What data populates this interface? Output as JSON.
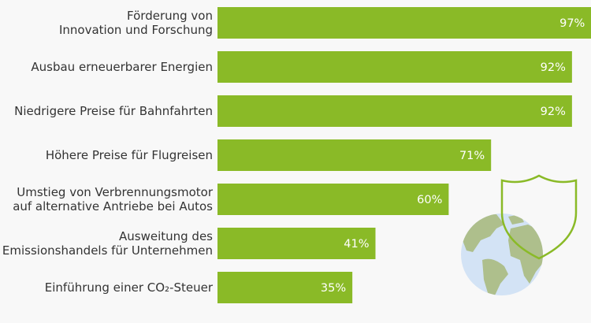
{
  "chart_data": {
    "type": "bar",
    "orientation": "horizontal",
    "categories": [
      [
        "Förderung von",
        "Innovation und Forschung"
      ],
      [
        "Ausbau erneuerbarer Energien"
      ],
      [
        "Niedrigere Preise für Bahnfahrten"
      ],
      [
        "Höhere Preise für Flugreisen"
      ],
      [
        "Umstieg von Verbrennungsmotor",
        "auf alternative Antriebe bei Autos"
      ],
      [
        "Ausweitung des",
        "Emissionshandels für Unternehmen"
      ],
      [
        "Einführung einer CO₂-Steuer"
      ]
    ],
    "values": [
      97,
      92,
      92,
      71,
      60,
      41,
      35
    ],
    "data_labels": [
      "97%",
      "92%",
      "92%",
      "71%",
      "60%",
      "41%",
      "35%"
    ],
    "unit": "%",
    "xlim": [
      0,
      100
    ],
    "grid": false,
    "bar_color": "#8aba27",
    "label_color": "#333333"
  },
  "decoration": {
    "icons": [
      "globe-icon",
      "shield-icon"
    ],
    "globe_ocean": "#d3e3f5",
    "globe_land": "#aebf8c",
    "shield_color": "#8aba27"
  }
}
